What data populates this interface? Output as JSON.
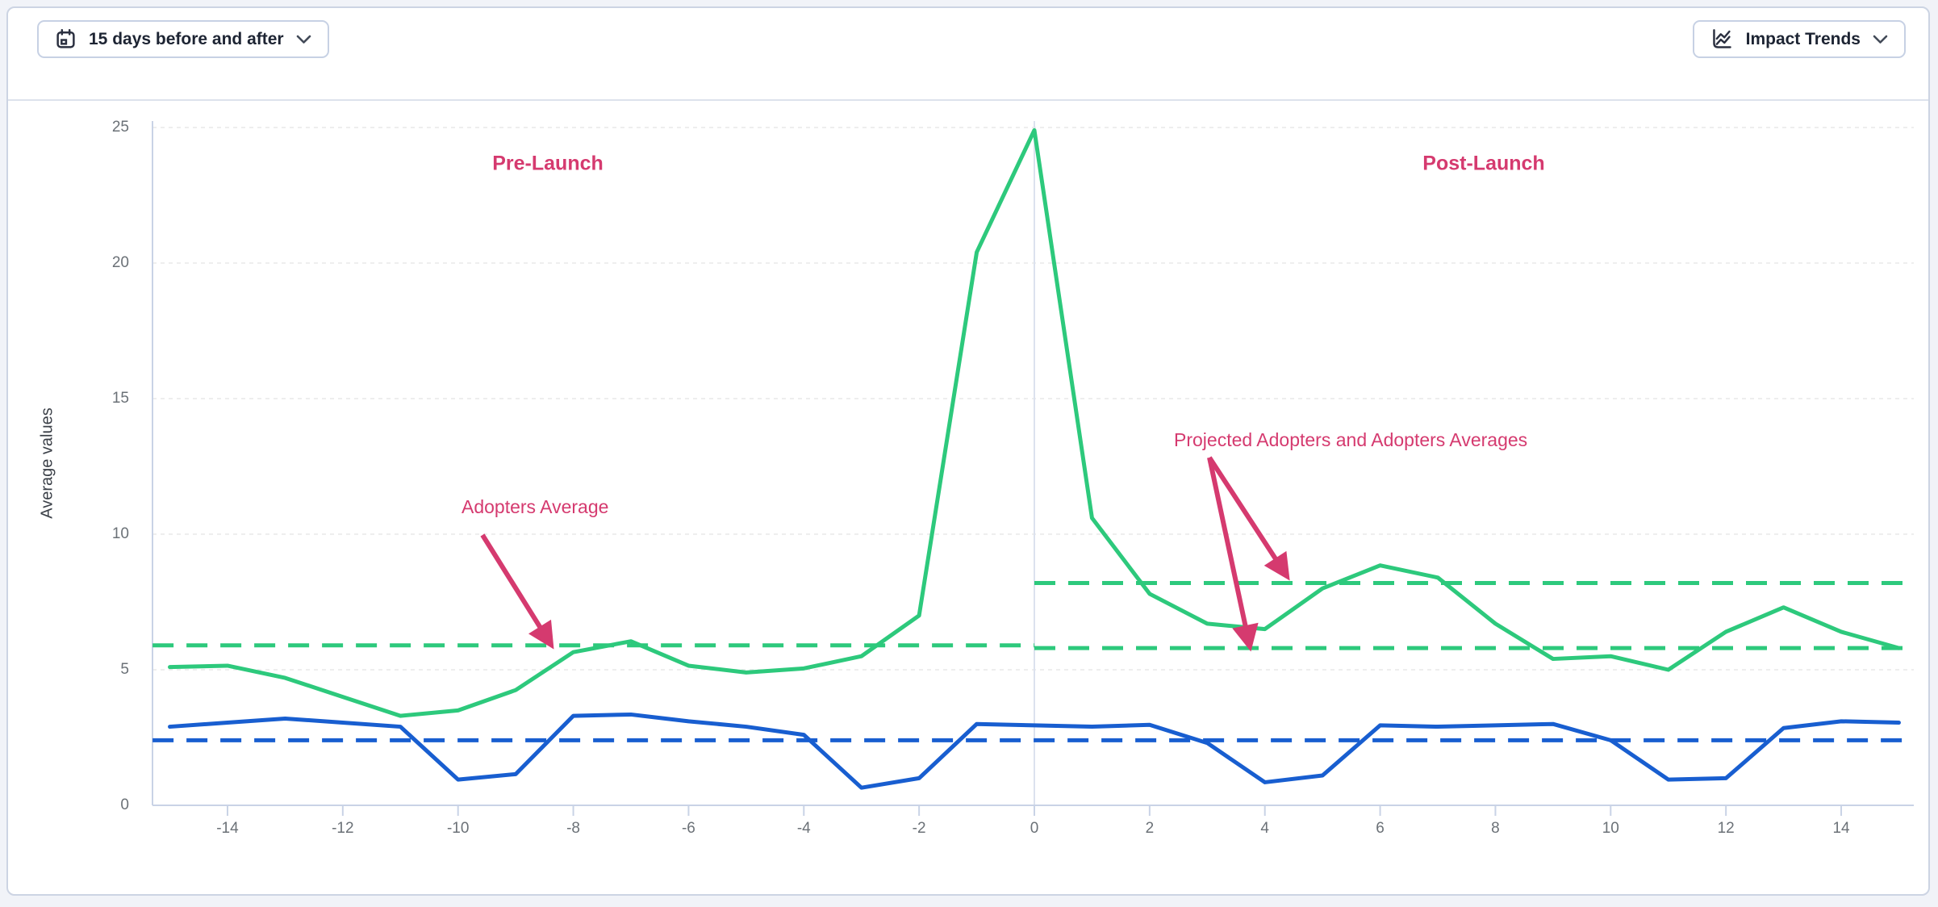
{
  "toolbar": {
    "date_range_button": {
      "label": "15 days before and after",
      "icon": "calendar-icon"
    },
    "trends_button": {
      "label": "Impact Trends",
      "icon": "trend-lines-icon"
    },
    "chevron_icon": "chevron-down-icon"
  },
  "chart_data": {
    "type": "line",
    "title": "",
    "xlabel": "",
    "ylabel": "Average values",
    "xlim": [
      -15.3,
      15.26
    ],
    "ylim": [
      0,
      26.3
    ],
    "grid": "horizontal-dashed",
    "legend": "none",
    "x": [
      -15,
      -14,
      -13,
      -12,
      -11,
      -10,
      -9,
      -8,
      -7,
      -6,
      -5,
      -4,
      -3,
      -2,
      -1,
      0,
      1,
      2,
      3,
      4,
      5,
      6,
      7,
      8,
      9,
      10,
      11,
      12,
      13,
      14,
      15
    ],
    "xticks": [
      -14,
      -12,
      -10,
      -8,
      -6,
      -4,
      -2,
      0,
      2,
      4,
      6,
      8,
      10,
      12,
      14
    ],
    "yticks": [
      0,
      5,
      10,
      15,
      20,
      25
    ],
    "series": [
      {
        "name": "adopters-green-line",
        "color": "#2dc97c",
        "style": "solid",
        "values": [
          5.1,
          5.15,
          4.7,
          4.0,
          3.3,
          3.5,
          4.25,
          5.65,
          6.05,
          5.15,
          4.9,
          5.05,
          5.5,
          7.0,
          20.4,
          24.9,
          10.6,
          7.8,
          6.7,
          6.5,
          8.0,
          8.85,
          8.4,
          6.7,
          5.4,
          5.5,
          5.0,
          6.4,
          7.3,
          6.4,
          5.8
        ]
      },
      {
        "name": "projected-adopters-blue-line",
        "color": "#185ed0",
        "style": "solid",
        "values": [
          2.9,
          3.05,
          3.2,
          3.05,
          2.9,
          0.95,
          1.15,
          3.3,
          3.35,
          3.1,
          2.9,
          2.6,
          0.65,
          1.0,
          3.0,
          2.95,
          2.9,
          2.97,
          2.3,
          0.85,
          1.1,
          2.95,
          2.9,
          2.95,
          3.0,
          2.4,
          0.95,
          1.0,
          2.85,
          3.1,
          3.05
        ]
      }
    ],
    "reference_lines": [
      {
        "name": "adopters-average-pre-launch",
        "color": "#2dc97c",
        "style": "dashed",
        "value": 5.9,
        "x_from": -15.3,
        "x_to": 0
      },
      {
        "name": "adopters-average-post-launch",
        "color": "#2dc97c",
        "style": "dashed",
        "value": 8.2,
        "x_from": 0,
        "x_to": 15.26
      },
      {
        "name": "projected-adopters-average-post-launch",
        "color": "#2dc97c",
        "style": "dashed",
        "value": 5.8,
        "x_from": 0,
        "x_to": 15.26
      },
      {
        "name": "blue-series-average",
        "color": "#185ed0",
        "style": "dashed",
        "value": 2.4,
        "x_from": -15.3,
        "x_to": 15.26
      }
    ],
    "launch_divider_x": 0,
    "annotations": {
      "pre_launch": "Pre-Launch",
      "post_launch": "Post-Launch",
      "adopters_average": "Adopters Average",
      "projected_averages": "Projected Adopters and Adopters Averages"
    },
    "annotation_color": "#d53a6f"
  }
}
